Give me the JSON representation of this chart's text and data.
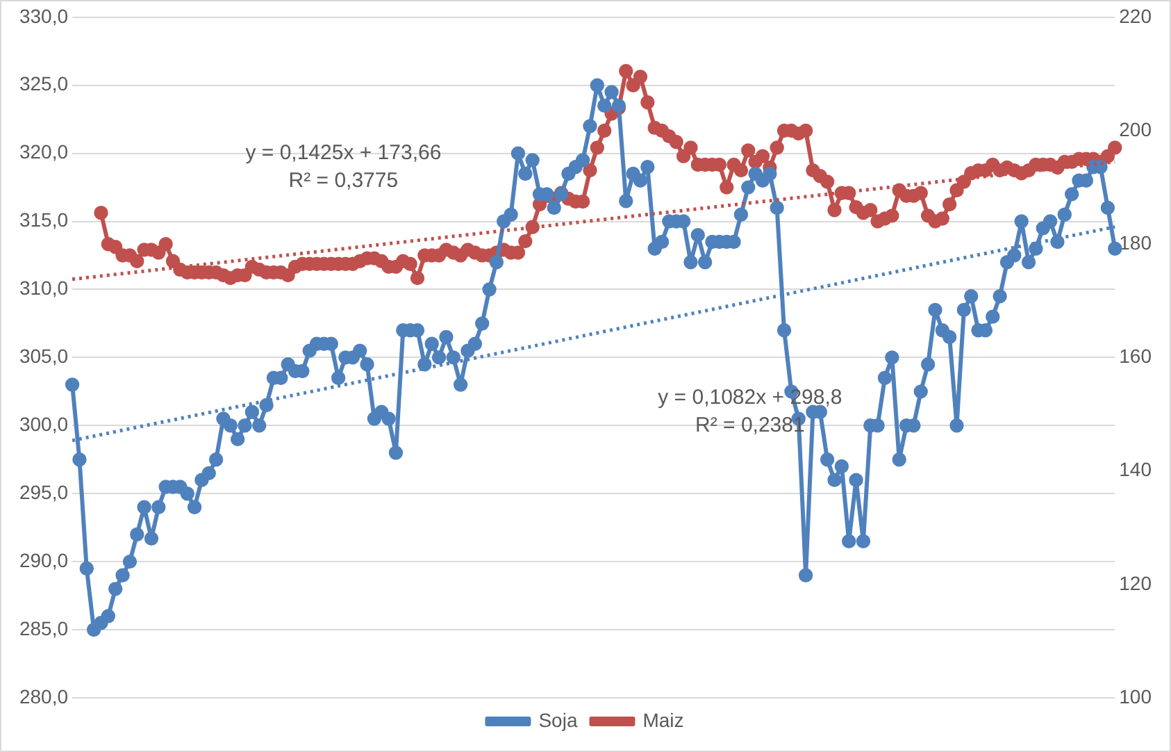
{
  "chart_data": {
    "type": "line",
    "categories": [
      null,
      null,
      null,
      null,
      null,
      null,
      null,
      null,
      null,
      null,
      null,
      null,
      null,
      null,
      null,
      null,
      null,
      null,
      null,
      null,
      null,
      null,
      null,
      null,
      null,
      null,
      null,
      null,
      null,
      null,
      null,
      null,
      null,
      null,
      null,
      null,
      null,
      null,
      null,
      null,
      null,
      null,
      null,
      null,
      null,
      null,
      null,
      null,
      null,
      null,
      null,
      null,
      null,
      null,
      null,
      null,
      null,
      null,
      null,
      null,
      null,
      null,
      null,
      null,
      null,
      null,
      null,
      null,
      null,
      null,
      null,
      null,
      null,
      null,
      null,
      null,
      null,
      null,
      null,
      null,
      null,
      null,
      null,
      null,
      null,
      null,
      null,
      null,
      null,
      null,
      null,
      null,
      null,
      null,
      null,
      null,
      null,
      null,
      null,
      null,
      null,
      null,
      null,
      null,
      null,
      null,
      null,
      null,
      null,
      null,
      null,
      null,
      null,
      null,
      null,
      null,
      null,
      null,
      null,
      null,
      null,
      null,
      null,
      null,
      null,
      null,
      null,
      null,
      null,
      null,
      null,
      null,
      null,
      null,
      null,
      null,
      null,
      null,
      null,
      null,
      null,
      null,
      null,
      null,
      null,
      null
    ],
    "series": [
      {
        "name": "Soja",
        "color": "#4f81bd",
        "marker": "circle",
        "values": [
          303,
          297.5,
          289.5,
          285,
          285.5,
          286,
          288,
          289,
          290,
          292,
          294,
          291.7,
          294,
          295.5,
          295.5,
          295.5,
          295,
          294,
          296,
          296.5,
          297.5,
          300.5,
          300,
          299,
          300,
          301,
          300,
          301.5,
          303.5,
          303.5,
          304.5,
          304,
          304,
          305.5,
          306,
          306,
          306,
          303.5,
          305,
          305,
          305.5,
          304.5,
          300.5,
          301,
          300.5,
          298,
          307,
          307,
          307,
          304.5,
          306,
          305,
          306.5,
          305,
          303,
          305.5,
          306,
          307.5,
          310,
          312,
          315,
          315.5,
          320,
          318.5,
          319.5,
          317,
          317,
          316,
          317,
          318.5,
          319,
          319.5,
          322,
          325,
          323.5,
          324.5,
          323.5,
          316.5,
          318.5,
          318,
          319,
          313,
          313.5,
          315,
          315,
          315,
          312,
          314,
          312,
          313.5,
          313.5,
          313.5,
          313.5,
          315.5,
          317.5,
          318.5,
          318,
          318.5,
          316,
          307,
          302.5,
          300.5,
          289,
          301,
          301,
          297.5,
          296,
          297,
          291.5,
          296,
          291.5,
          300,
          300,
          303.5,
          305,
          297.5,
          300,
          300,
          302.5,
          304.5,
          308.5,
          307,
          306.5,
          300,
          308.5,
          309.5,
          307,
          307,
          308,
          309.5,
          312,
          312.5,
          315,
          312,
          313,
          314.5,
          315,
          313.5,
          315.5,
          317,
          318,
          318,
          319,
          319,
          316,
          313
        ]
      },
      {
        "name": "Maiz",
        "color": "#c0504d",
        "axis": "y2",
        "marker": "circle",
        "values": [
          null,
          null,
          null,
          null,
          185.5,
          180,
          179.5,
          178,
          178,
          177,
          179,
          179,
          178.5,
          180,
          177,
          175.5,
          175,
          175,
          175,
          175,
          175,
          174.5,
          174,
          174.5,
          174.5,
          176,
          175.5,
          175,
          175,
          175,
          174.5,
          176,
          176.5,
          176.5,
          176.5,
          176.5,
          176.5,
          176.5,
          176.5,
          176.5,
          177,
          177.5,
          177.5,
          177,
          176,
          176,
          177,
          176.5,
          174,
          178,
          178,
          178,
          179,
          178.5,
          178,
          179,
          178.5,
          178,
          178,
          178.5,
          179,
          178.5,
          178.5,
          180.5,
          183,
          187,
          188.5,
          188,
          189,
          188,
          187.5,
          187.5,
          193,
          197,
          200,
          203,
          204,
          210.5,
          208,
          209.5,
          205,
          200.5,
          200,
          199,
          198,
          195.5,
          197,
          194,
          194,
          194,
          194,
          190,
          194,
          193,
          196.5,
          194.5,
          195.5,
          193.5,
          197,
          200,
          200,
          199.5,
          200,
          193,
          192,
          191,
          186,
          189,
          189,
          186.5,
          185.5,
          186,
          184,
          184.5,
          185,
          189.5,
          188.5,
          188.5,
          189,
          185,
          184,
          184.5,
          187,
          189.5,
          191,
          192.5,
          193,
          193,
          194,
          193,
          193.5,
          193,
          192.5,
          193,
          194,
          194,
          194,
          193.5,
          194.5,
          194.5,
          195,
          195,
          195,
          194.5,
          195.5,
          197
        ]
      },
      {
        "color": "#4f81bd",
        "marker": "none",
        "line_style": "dotted",
        "values": [
          298.9,
          null,
          null,
          null,
          null,
          null,
          null,
          null,
          null,
          null,
          null,
          null,
          null,
          null,
          null,
          null,
          null,
          null,
          null,
          null,
          null,
          null,
          null,
          null,
          null,
          null,
          null,
          null,
          null,
          null,
          null,
          null,
          null,
          null,
          null,
          null,
          null,
          null,
          null,
          null,
          null,
          null,
          null,
          null,
          null,
          null,
          null,
          null,
          null,
          null,
          null,
          null,
          null,
          null,
          null,
          null,
          null,
          null,
          null,
          null,
          null,
          null,
          null,
          null,
          null,
          null,
          null,
          null,
          null,
          null,
          null,
          null,
          null,
          null,
          null,
          null,
          null,
          null,
          null,
          null,
          null,
          null,
          null,
          null,
          null,
          null,
          null,
          null,
          null,
          null,
          null,
          null,
          null,
          null,
          null,
          null,
          null,
          null,
          null,
          null,
          null,
          null,
          null,
          null,
          null,
          null,
          null,
          null,
          null,
          null,
          null,
          null,
          null,
          null,
          null,
          null,
          null,
          null,
          null,
          null,
          null,
          null,
          null,
          null,
          null,
          null,
          null,
          null,
          null,
          null,
          null,
          null,
          null,
          null,
          null,
          null,
          null,
          null,
          null,
          null,
          null,
          null,
          null,
          null,
          null,
          314.6
        ]
      },
      {
        "color": "#c0504d",
        "axis": "y2",
        "marker": "none",
        "line_style": "dotted",
        "values": [
          173.8,
          null,
          null,
          null,
          null,
          null,
          null,
          null,
          null,
          null,
          null,
          null,
          null,
          null,
          null,
          null,
          null,
          null,
          null,
          null,
          null,
          null,
          null,
          null,
          null,
          null,
          null,
          null,
          null,
          null,
          null,
          null,
          null,
          null,
          null,
          null,
          null,
          null,
          null,
          null,
          null,
          null,
          null,
          null,
          null,
          null,
          null,
          null,
          null,
          null,
          null,
          null,
          null,
          null,
          null,
          null,
          null,
          null,
          null,
          null,
          null,
          null,
          null,
          null,
          null,
          null,
          null,
          null,
          null,
          null,
          null,
          null,
          null,
          null,
          null,
          null,
          null,
          null,
          null,
          null,
          null,
          null,
          null,
          null,
          null,
          null,
          null,
          null,
          null,
          null,
          null,
          null,
          null,
          null,
          null,
          null,
          null,
          null,
          null,
          null,
          null,
          null,
          null,
          null,
          null,
          null,
          null,
          null,
          null,
          null,
          null,
          null,
          null,
          null,
          null,
          null,
          null,
          null,
          null,
          null,
          null,
          null,
          null,
          null,
          null,
          null,
          null,
          null,
          null,
          null,
          null,
          null,
          null,
          null,
          null,
          null,
          null,
          null,
          null,
          null,
          null,
          null,
          null,
          null,
          null,
          194.5
        ]
      }
    ],
    "ylim": [
      280,
      330
    ],
    "yticks": [
      {
        "value": 280,
        "label": "280,0"
      },
      {
        "value": 285,
        "label": "285,0"
      },
      {
        "value": 290,
        "label": "290,0"
      },
      {
        "value": 295,
        "label": "295,0"
      },
      {
        "value": 300,
        "label": "300,0"
      },
      {
        "value": 305,
        "label": "305,0"
      },
      {
        "value": 310,
        "label": "310,0"
      },
      {
        "value": 315,
        "label": "315,0"
      },
      {
        "value": 320,
        "label": "320,0"
      },
      {
        "value": 325,
        "label": "325,0"
      },
      {
        "value": 330,
        "label": "330,0"
      }
    ],
    "y2lim": [
      100,
      220
    ],
    "y2ticks": [
      100,
      120,
      140,
      160,
      180,
      200,
      220
    ],
    "annotations": [
      "y = 0,1425x + 173,66\nR² = 0,3775",
      "y = 0,1082x + 298,8\nR² = 0,2381"
    ],
    "grid": "y",
    "legend": "bottom"
  }
}
